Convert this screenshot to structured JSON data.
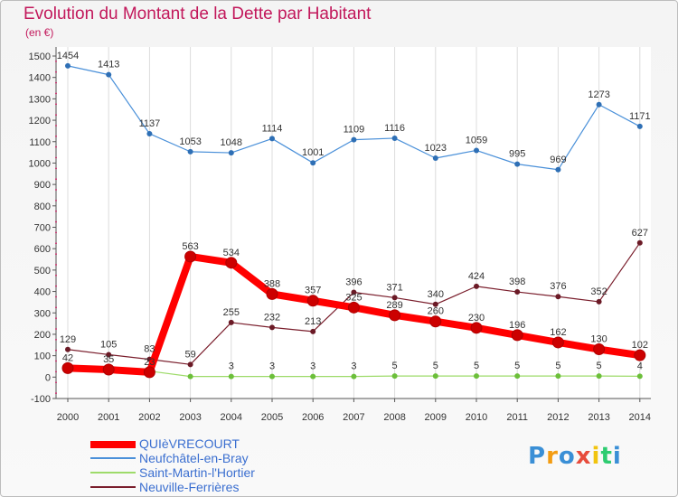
{
  "title": "Evolution du Montant de la Dette par Habitant",
  "unit": "(en €)",
  "logo": "Proxiti",
  "chart_data": {
    "type": "line",
    "title": "Evolution du Montant de la Dette par Habitant",
    "ylabel": "(en €)",
    "xlabel": "",
    "ylim": [
      -100,
      1500
    ],
    "yticks": [
      -100,
      0,
      100,
      200,
      300,
      400,
      500,
      600,
      700,
      800,
      900,
      1000,
      1100,
      1200,
      1300,
      1400,
      1500
    ],
    "categories": [
      "2000",
      "2001",
      "2002",
      "2003",
      "2004",
      "2005",
      "2006",
      "2007",
      "2008",
      "2009",
      "2010",
      "2011",
      "2012",
      "2013",
      "2014"
    ],
    "grid": "vertical",
    "legend_position": "bottom-left",
    "series": [
      {
        "name": "QUIèVRECOURT",
        "color": "#ff0000",
        "marker": "#cc0000",
        "width": 8,
        "values": [
          42,
          35,
          23,
          563,
          534,
          388,
          357,
          325,
          289,
          260,
          230,
          196,
          162,
          130,
          102
        ],
        "labels": [
          "42",
          "35",
          "23",
          "563",
          "534",
          "388",
          "357",
          "325",
          "289",
          "260",
          "230",
          "196",
          "162",
          "130",
          "102"
        ]
      },
      {
        "name": "Neufchâtel-en-Bray",
        "color": "#4a90d9",
        "marker": "#2e6fb5",
        "width": 1.2,
        "values": [
          1454,
          1413,
          1137,
          1053,
          1048,
          1114,
          1001,
          1109,
          1116,
          1023,
          1059,
          995,
          969,
          1273,
          1171
        ],
        "labels": [
          "1454",
          "1413",
          "1137",
          "1053",
          "1048",
          "1114",
          "1001",
          "1109",
          "1116",
          "1023",
          "1059",
          "995",
          "969",
          "1273",
          "1171"
        ]
      },
      {
        "name": "Saint-Martin-l'Hortier",
        "color": "#9edb6a",
        "marker": "#6cbf3a",
        "width": 1.2,
        "values": [
          37,
          32,
          28,
          3,
          3,
          3,
          3,
          3,
          5,
          5,
          5,
          5,
          5,
          5,
          4
        ],
        "labels": [
          "",
          "",
          "",
          "",
          "3",
          "3",
          "3",
          "3",
          "5",
          "5",
          "5",
          "5",
          "5",
          "5",
          "4"
        ]
      },
      {
        "name": "Neuville-Ferrières",
        "color": "#7a1e2c",
        "marker": "#6b1a26",
        "width": 1.2,
        "values": [
          129,
          105,
          83,
          59,
          255,
          232,
          213,
          396,
          371,
          340,
          424,
          398,
          376,
          352,
          627
        ],
        "labels": [
          "129",
          "105",
          "83",
          "59",
          "255",
          "232",
          "213",
          "396",
          "371",
          "340",
          "424",
          "398",
          "376",
          "352",
          "627"
        ]
      }
    ]
  }
}
